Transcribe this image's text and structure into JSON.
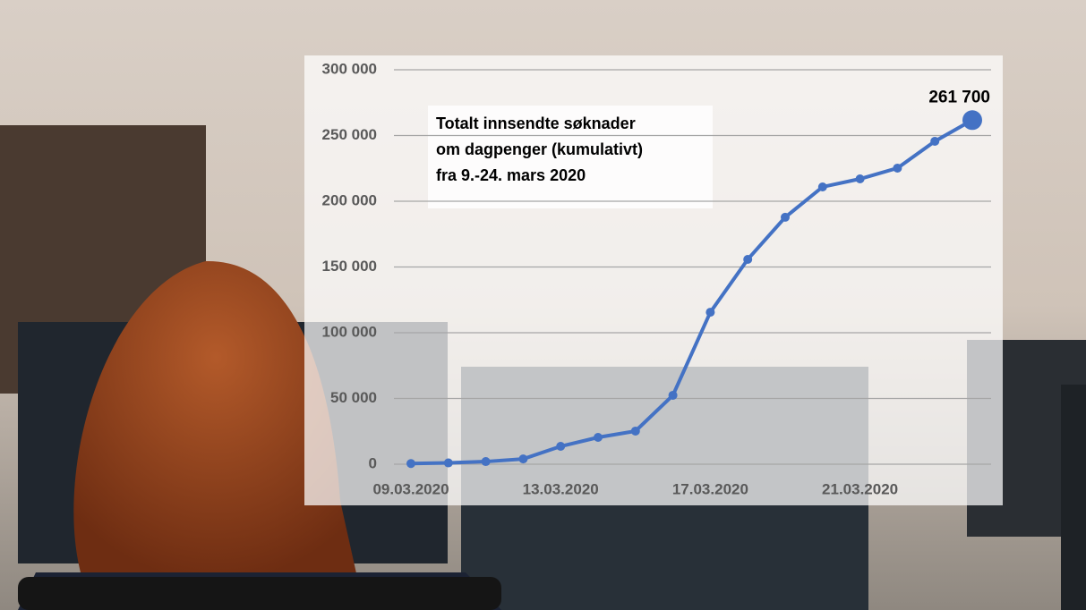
{
  "chart_data": {
    "type": "line",
    "annotation": [
      "Totalt innsendte søknader",
      "om dagpenger (kumulativt)",
      "fra 9.-24. mars 2020"
    ],
    "categories": [
      "09.03.2020",
      null,
      null,
      null,
      "13.03.2020",
      null,
      null,
      null,
      "17.03.2020",
      null,
      null,
      null,
      "21.03.2020",
      null,
      null,
      null
    ],
    "series": [
      {
        "color": "#4472c4",
        "values": [
          500,
          1000,
          2000,
          4000,
          13600,
          20400,
          25200,
          52400,
          115600,
          155800,
          187800,
          210900,
          217000,
          225200,
          245600,
          261700
        ],
        "value_labels": [
          null,
          null,
          null,
          null,
          null,
          null,
          null,
          null,
          null,
          null,
          null,
          null,
          null,
          null,
          null,
          "261 700"
        ]
      }
    ],
    "ylim": [
      0,
      300000
    ],
    "yticks": [
      0,
      {
        "value": 50000,
        "label": "50 000"
      },
      {
        "value": 100000,
        "label": "100 000"
      },
      {
        "value": 150000,
        "label": "150 000"
      },
      {
        "value": 200000,
        "label": "200 000"
      },
      {
        "value": 250000,
        "label": "250 000"
      },
      {
        "value": 300000,
        "label": "300 000"
      }
    ],
    "grid": true
  }
}
